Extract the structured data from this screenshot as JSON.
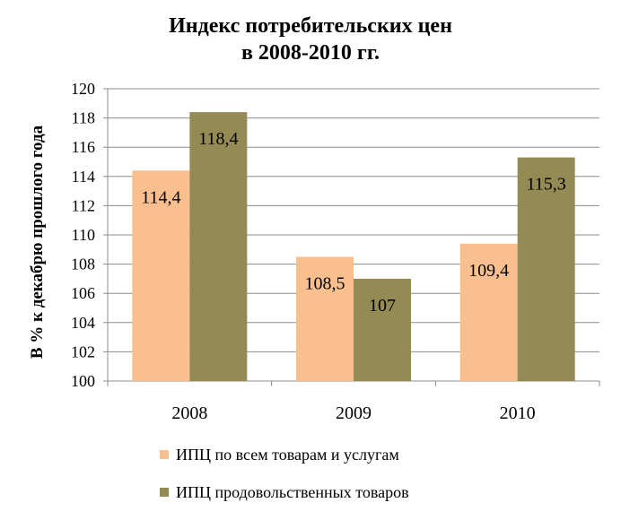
{
  "chart_data": {
    "type": "bar",
    "title_lines": [
      "Индекс потребительских цен",
      "в 2008-2010 гг."
    ],
    "ylabel": "В % к декабрю прошлого года",
    "xlabel": "",
    "categories": [
      "2008",
      "2009",
      "2010"
    ],
    "series": [
      {
        "name": "ИПЦ по всем товарам и услугам",
        "color": "#f9bf8f",
        "values": [
          114.4,
          108.5,
          109.4
        ],
        "labels": [
          "114,4",
          "108,5",
          "109,4"
        ]
      },
      {
        "name": "ИПЦ продовольственных товаров",
        "color": "#948a54",
        "values": [
          118.4,
          107.0,
          115.3
        ],
        "labels": [
          "118,4",
          "107",
          "115,3"
        ]
      }
    ],
    "ylim": [
      100,
      120
    ],
    "yticks": [
      "100",
      "102",
      "104",
      "106",
      "108",
      "110",
      "112",
      "114",
      "116",
      "118",
      "120"
    ],
    "grid": true,
    "legend_position": "bottom"
  }
}
